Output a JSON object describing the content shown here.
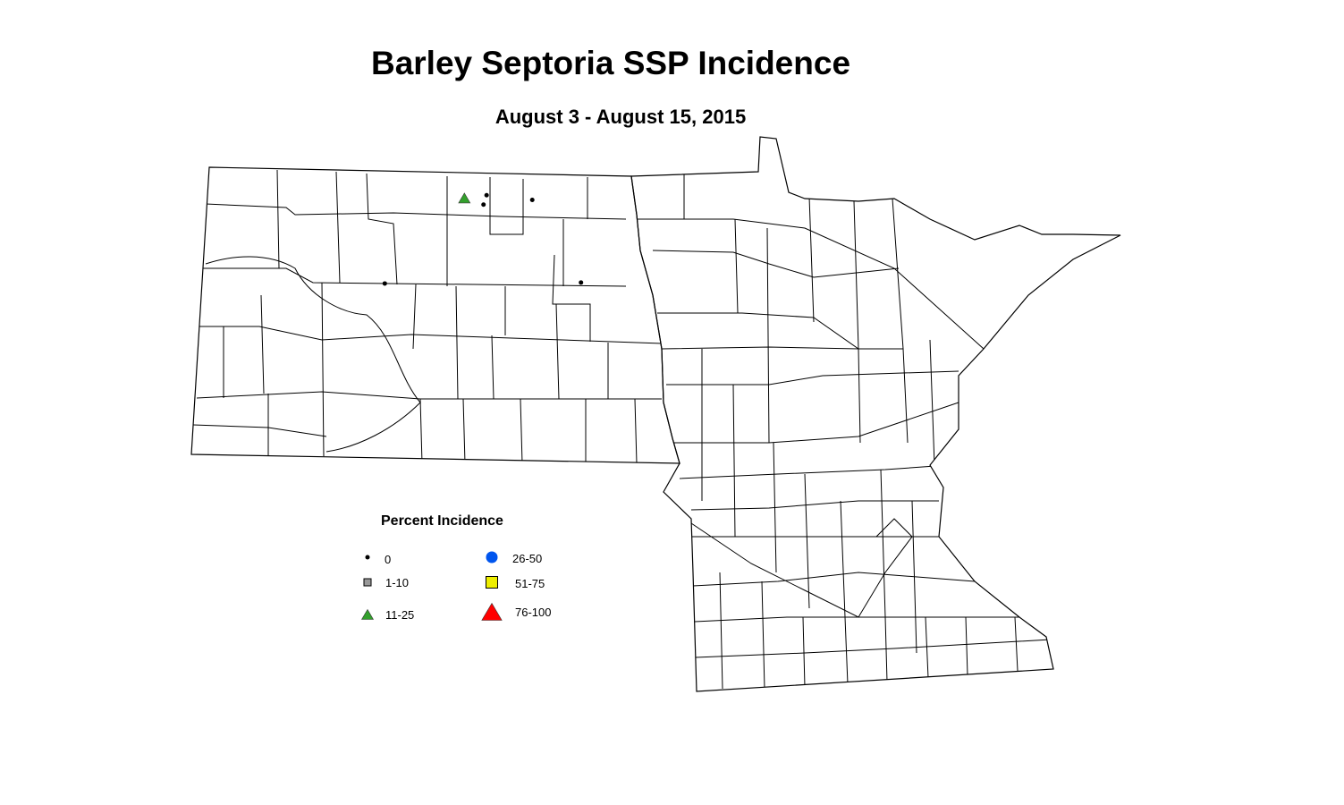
{
  "title": "Barley Septoria SSP Incidence",
  "subtitle": "August 3 - August 15, 2015",
  "legend": {
    "title": "Percent Incidence",
    "items": [
      {
        "label": "0",
        "symbol": "dot",
        "color": "#000000"
      },
      {
        "label": "1-10",
        "symbol": "square",
        "color": "#999999"
      },
      {
        "label": "11-25",
        "symbol": "triangle",
        "color": "#33a02c"
      },
      {
        "label": "26-50",
        "symbol": "circle",
        "color": "#0055ee"
      },
      {
        "label": "51-75",
        "symbol": "square",
        "color": "#eeee00"
      },
      {
        "label": "76-100",
        "symbol": "triangle",
        "color": "#ff0000"
      }
    ]
  },
  "chart_data": {
    "type": "scatter",
    "region": "North Dakota and Minnesota counties",
    "points": [
      {
        "lon": -99.77,
        "lat": 48.72,
        "category": "11-25"
      },
      {
        "lon": -99.41,
        "lat": 48.75,
        "category": "0"
      },
      {
        "lon": -99.46,
        "lat": 48.65,
        "category": "0"
      },
      {
        "lon": -98.67,
        "lat": 48.7,
        "category": "0"
      },
      {
        "lon": -101.06,
        "lat": 47.81,
        "category": "0"
      },
      {
        "lon": -97.88,
        "lat": 47.82,
        "category": "0"
      }
    ]
  }
}
